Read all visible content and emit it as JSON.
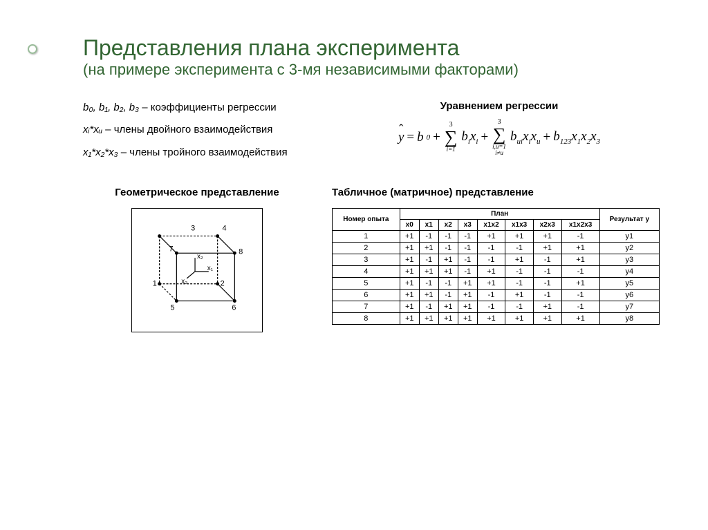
{
  "title": "Представления плана эксперимента",
  "subtitle": "(на примере эксперимента с 3-мя независимыми факторами)",
  "defs": {
    "d1_vars": "b₀, b₁, b₂, b₃",
    "d1_txt": " – коэффициенты регрессии",
    "d2_vars": "xᵢ*xᵤ",
    "d2_txt": " – члены двойного взаимодействия",
    "d3_vars": "x₁*x₂*x₃",
    "d3_txt": " – члены тройного взаимодействия"
  },
  "eq_heading": "Уравнением регрессии",
  "geo_heading": "Геометрическое представление",
  "tab_heading": "Табличное (матричное) представление",
  "cube": {
    "vertices": [
      "1",
      "2",
      "3",
      "4",
      "5",
      "6",
      "7",
      "8"
    ],
    "axes": [
      "x₁",
      "x₂",
      "x₃"
    ]
  },
  "table": {
    "h_num": "Номер опыта",
    "h_plan": "План",
    "h_res": "Результат y",
    "cols": [
      "x0",
      "x1",
      "x2",
      "x3",
      "x1x2",
      "x1x3",
      "x2x3",
      "x1x2x3"
    ],
    "rows": [
      {
        "n": "1",
        "v": [
          "+1",
          "-1",
          "-1",
          "-1",
          "+1",
          "+1",
          "+1",
          "-1"
        ],
        "y": "y1"
      },
      {
        "n": "2",
        "v": [
          "+1",
          "+1",
          "-1",
          "-1",
          "-1",
          "-1",
          "+1",
          "+1"
        ],
        "y": "y2"
      },
      {
        "n": "3",
        "v": [
          "+1",
          "-1",
          "+1",
          "-1",
          "-1",
          "+1",
          "-1",
          "+1"
        ],
        "y": "y3"
      },
      {
        "n": "4",
        "v": [
          "+1",
          "+1",
          "+1",
          "-1",
          "+1",
          "-1",
          "-1",
          "-1"
        ],
        "y": "y4"
      },
      {
        "n": "5",
        "v": [
          "+1",
          "-1",
          "-1",
          "+1",
          "+1",
          "-1",
          "-1",
          "+1"
        ],
        "y": "y5"
      },
      {
        "n": "6",
        "v": [
          "+1",
          "+1",
          "-1",
          "+1",
          "-1",
          "+1",
          "-1",
          "-1"
        ],
        "y": "y6"
      },
      {
        "n": "7",
        "v": [
          "+1",
          "-1",
          "+1",
          "+1",
          "-1",
          "-1",
          "+1",
          "-1"
        ],
        "y": "y7"
      },
      {
        "n": "8",
        "v": [
          "+1",
          "+1",
          "+1",
          "+1",
          "+1",
          "+1",
          "+1",
          "+1"
        ],
        "y": "y8"
      }
    ]
  },
  "colors": {
    "title": "#336633",
    "border": "#000000",
    "bg": "#ffffff"
  }
}
